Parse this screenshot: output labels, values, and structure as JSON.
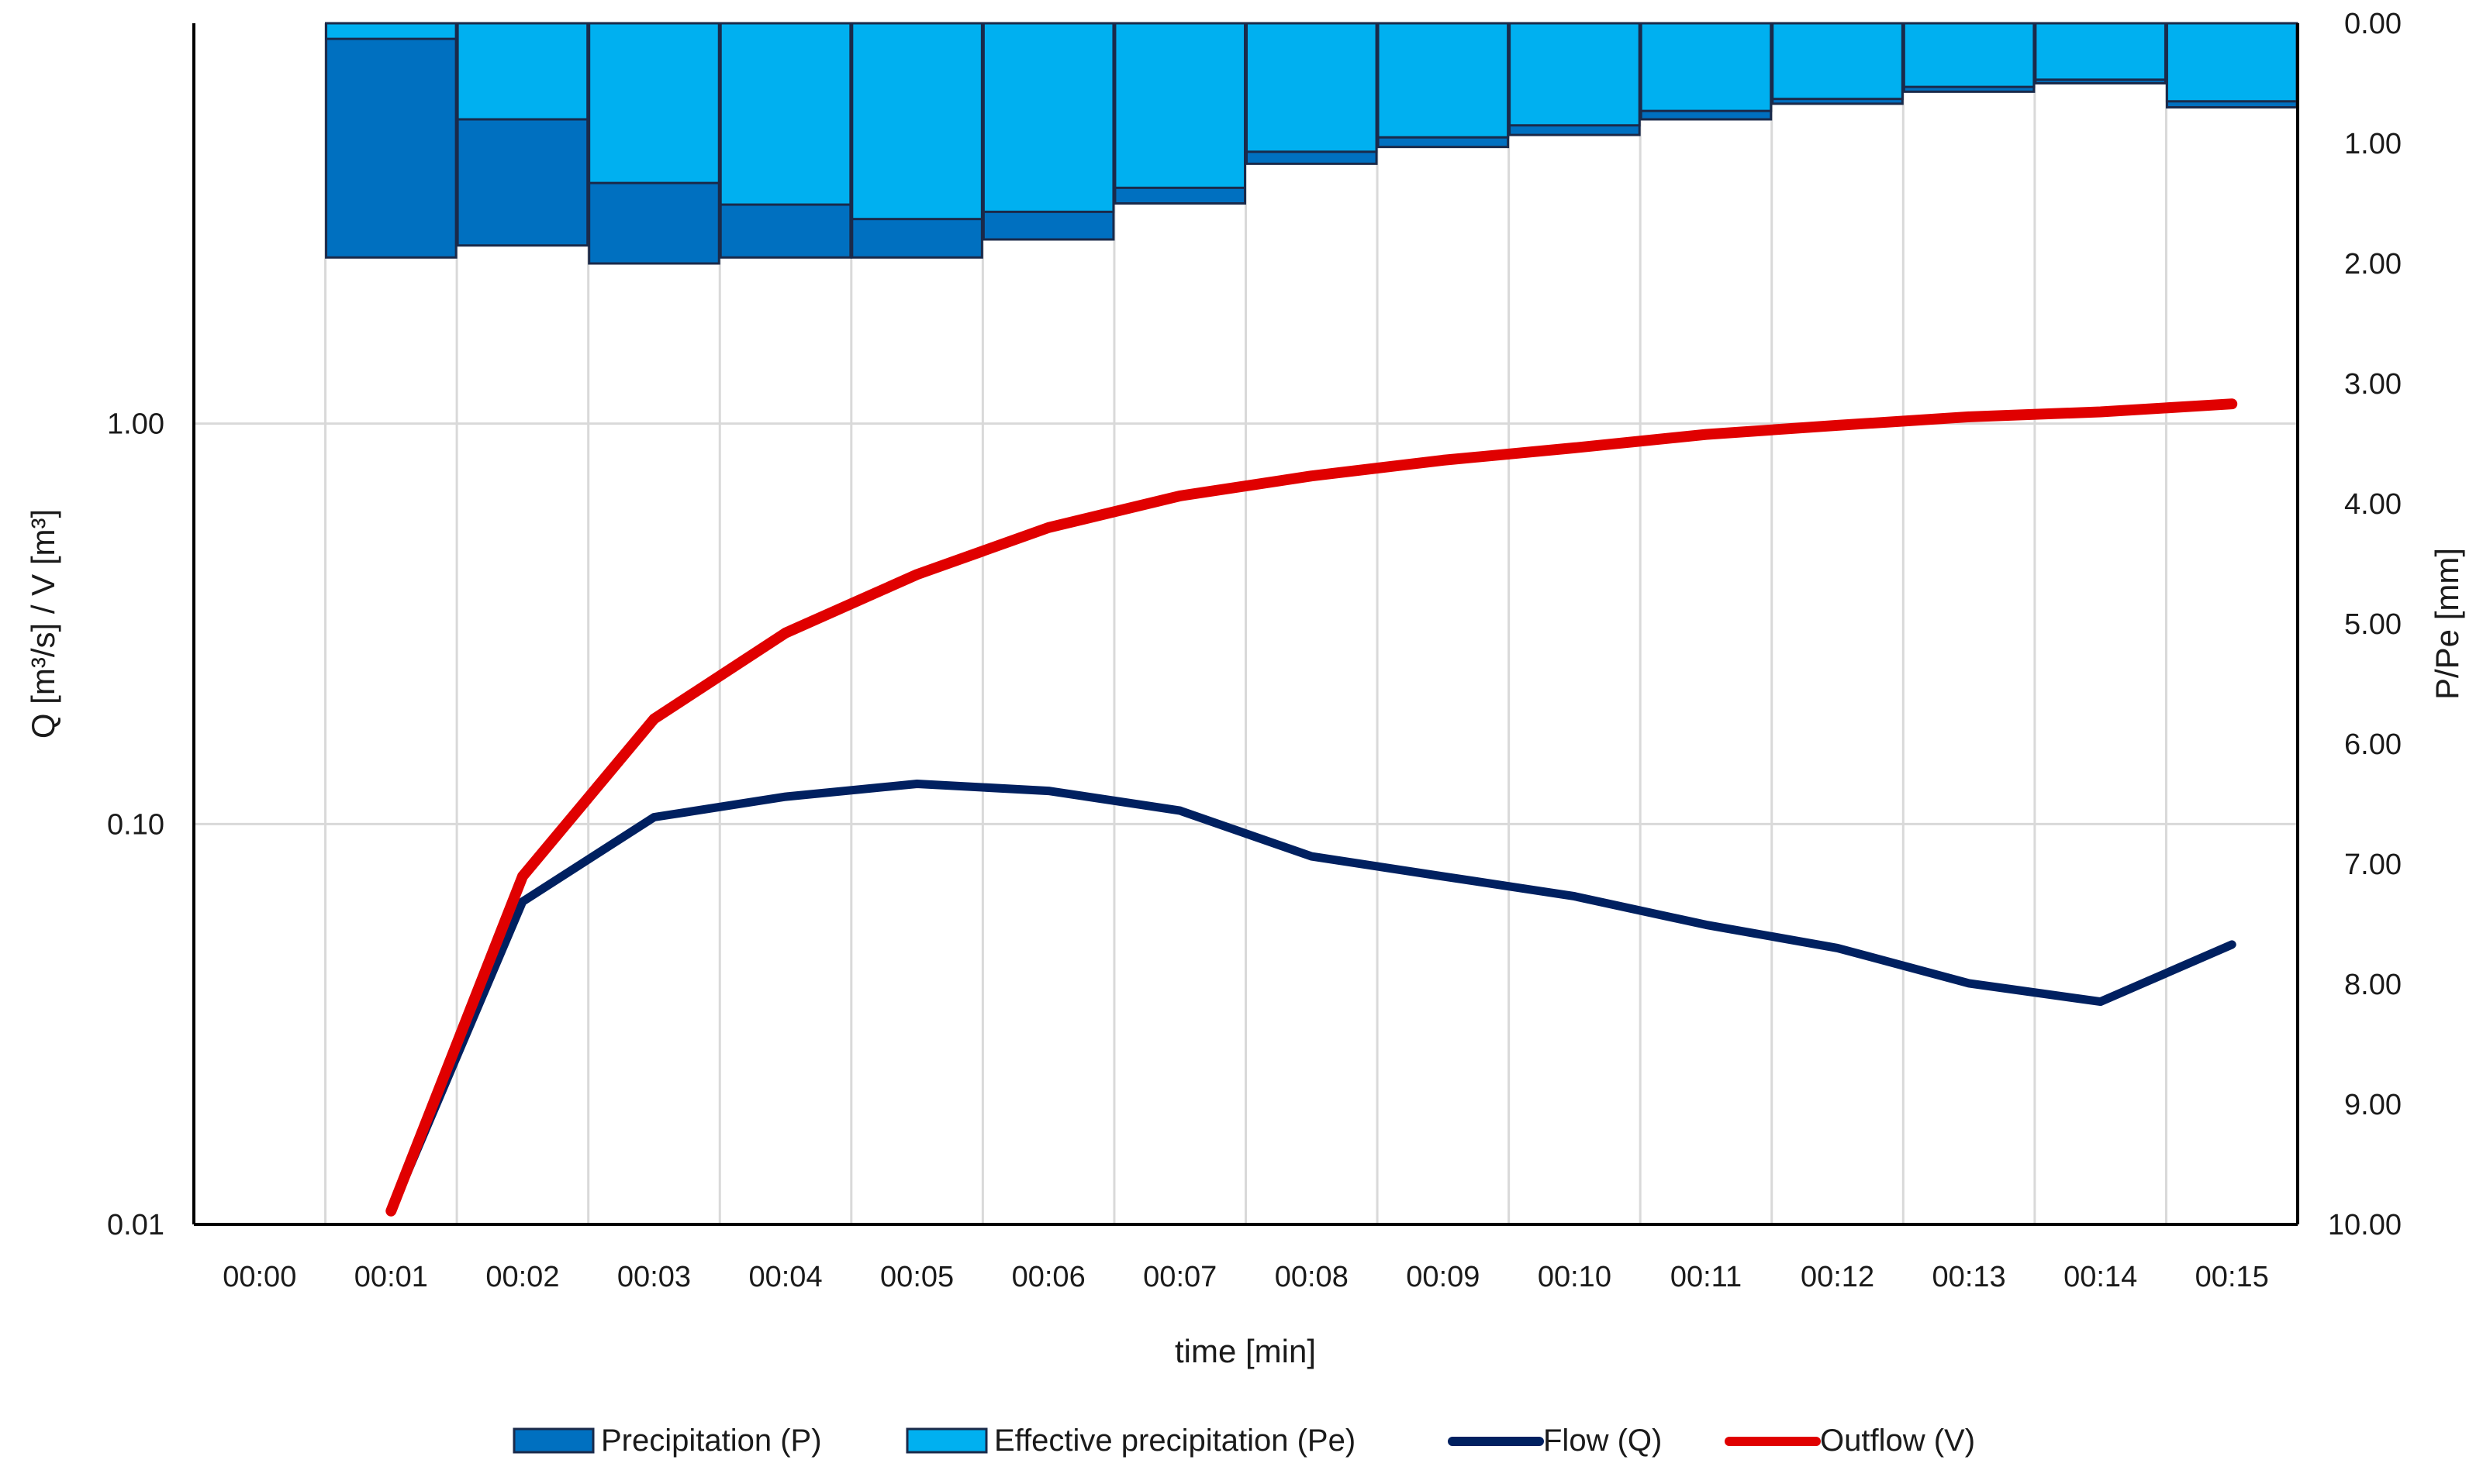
{
  "chart_data": {
    "type": "line+inverted-bar",
    "xlabel": "time [min]",
    "y_left_label": "Q [m³/s] / V [m³]",
    "y_right_label": "P/Pe [mm]",
    "x_tick_labels": [
      "00:00",
      "00:01",
      "00:02",
      "00:03",
      "00:04",
      "00:05",
      "00:06",
      "00:07",
      "00:08",
      "00:09",
      "00:10",
      "00:11",
      "00:12",
      "00:13",
      "00:14",
      "00:15"
    ],
    "y_left_scale": "log",
    "y_left_lim": [
      0.01,
      10
    ],
    "y_left_tick_values": [
      0.01,
      0.1,
      1
    ],
    "y_left_tick_labels": [
      "0.01",
      "0.10",
      "1.00"
    ],
    "y_right_lim": [
      0,
      10
    ],
    "y_right_inverted": true,
    "y_right_tick_values": [
      0,
      1,
      2,
      3,
      4,
      5,
      6,
      7,
      8,
      9,
      10
    ],
    "y_right_tick_labels": [
      "0.00",
      "1.00",
      "2.00",
      "3.00",
      "4.00",
      "5.00",
      "6.00",
      "7.00",
      "8.00",
      "9.00",
      "10.00"
    ],
    "bar_series": [
      {
        "name": "Precipitation (P)",
        "color": "#0070C0",
        "intervals": [
          "00:01",
          "00:02",
          "00:03",
          "00:04",
          "00:05",
          "00:06",
          "00:07",
          "00:08",
          "00:09",
          "00:10",
          "00:11",
          "00:12",
          "00:13",
          "00:14",
          "00:15"
        ],
        "values": [
          1.95,
          1.85,
          2.0,
          1.95,
          1.95,
          1.8,
          1.5,
          1.17,
          1.03,
          0.93,
          0.8,
          0.67,
          0.57,
          0.5,
          0.7
        ]
      },
      {
        "name": "Effective precipitation (Pe)",
        "color": "#00B0F0",
        "intervals": [
          "00:01",
          "00:02",
          "00:03",
          "00:04",
          "00:05",
          "00:06",
          "00:07",
          "00:08",
          "00:09",
          "00:10",
          "00:11",
          "00:12",
          "00:13",
          "00:14",
          "00:15"
        ],
        "values": [
          0.13,
          0.8,
          1.33,
          1.51,
          1.63,
          1.57,
          1.37,
          1.07,
          0.95,
          0.85,
          0.73,
          0.63,
          0.53,
          0.47,
          0.65
        ]
      }
    ],
    "line_series": [
      {
        "name": "Flow (Q)",
        "color": "#002060",
        "x": [
          "00:01",
          "00:02",
          "00:03",
          "00:04",
          "00:05",
          "00:06",
          "00:07",
          "00:08",
          "00:09",
          "00:10",
          "00:11",
          "00:12",
          "00:13",
          "00:14",
          "00:15"
        ],
        "values": [
          0.0108,
          0.064,
          0.104,
          0.117,
          0.126,
          0.121,
          0.108,
          0.083,
          0.074,
          0.066,
          0.056,
          0.049,
          0.04,
          0.036,
          0.05
        ]
      },
      {
        "name": "Outflow (V)",
        "color": "#E00000",
        "x": [
          "00:01",
          "00:02",
          "00:03",
          "00:04",
          "00:05",
          "00:06",
          "00:07",
          "00:08",
          "00:09",
          "00:10",
          "00:11",
          "00:12",
          "00:13",
          "00:14",
          "00:15"
        ],
        "values": [
          0.0108,
          0.074,
          0.183,
          0.3,
          0.42,
          0.55,
          0.66,
          0.74,
          0.81,
          0.87,
          0.94,
          0.99,
          1.04,
          1.07,
          1.12
        ]
      }
    ],
    "legend": {
      "position": "bottom",
      "items": [
        "Precipitation (P)",
        "Effective precipitation (Pe)",
        "Flow (Q)",
        "Outflow (V)"
      ]
    },
    "grid": true
  }
}
